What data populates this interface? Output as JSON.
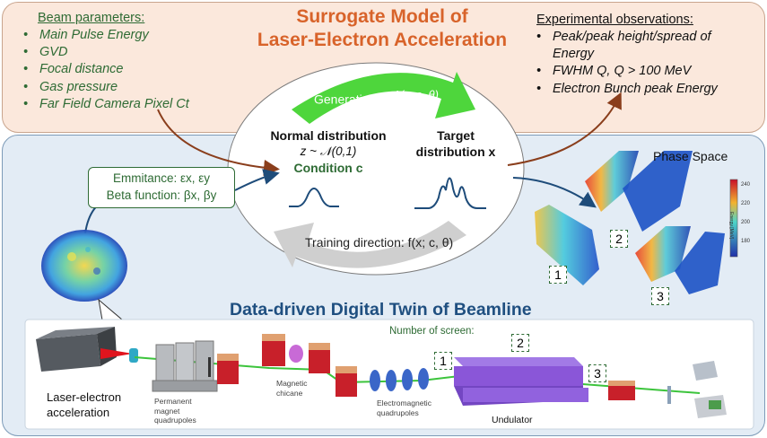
{
  "surrogate": {
    "title_line1": "Surrogate Model of",
    "title_line2": "Laser-Electron Acceleration",
    "title_color": "#d8632a"
  },
  "beam_params": {
    "heading": "Beam parameters:",
    "items": [
      "Main Pulse Energy",
      "GVD",
      "Focal distance",
      "Gas pressure",
      "Far Field Camera Pixel Ct"
    ]
  },
  "observations": {
    "heading": "Experimental observations:",
    "items": [
      "Peak/peak height/spread of Energy",
      "FWHM Q, Q > 100 MeV",
      "Electron Bunch peak Energy"
    ]
  },
  "center": {
    "generation": "Generation: f",
    "generation_math": "−1(z; c, θ)",
    "training": "Training direction: f(x; c, θ)",
    "normal_title": "Normal distribution",
    "normal_math": "z ~ 𝒩(0,1)",
    "condition": "Condition c",
    "target_title": "Target",
    "target_sub": "distribution x"
  },
  "emittance": {
    "line1": "Emmitance: εx, εy",
    "line2": "Beta function: βx, βy"
  },
  "phase_space": {
    "label": "Phase Space",
    "screens": [
      "1",
      "2",
      "3"
    ],
    "colorbar_ticks": [
      "240",
      "220",
      "200",
      "180"
    ],
    "colorbar_label": "Energy [MeV]"
  },
  "twin": {
    "title": "Data-driven Digital Twin of Beamline",
    "title_color": "#1f4f80",
    "screens_label": "Number of screen:",
    "screen_numbers": [
      "1",
      "2",
      "3"
    ],
    "acceleration": "Laser-electron acceleration",
    "permanent": "Permanent magnet quadrupoles",
    "chicane": "Magnetic chicane",
    "electromagnetic": "Electromagnetic quadrupoles",
    "undulator": "Undulator"
  },
  "colors": {
    "top_panel": "#fbe8dc",
    "bottom_panel": "#e3ecf5",
    "text_green": "#2e6b34",
    "arrow_green": "#4ed63c",
    "arrow_gray": "#cfcfcf",
    "arrow_brown": "#8a3e1c",
    "arrow_blue": "#1e4c7a",
    "undulator": "#8a56d8"
  }
}
